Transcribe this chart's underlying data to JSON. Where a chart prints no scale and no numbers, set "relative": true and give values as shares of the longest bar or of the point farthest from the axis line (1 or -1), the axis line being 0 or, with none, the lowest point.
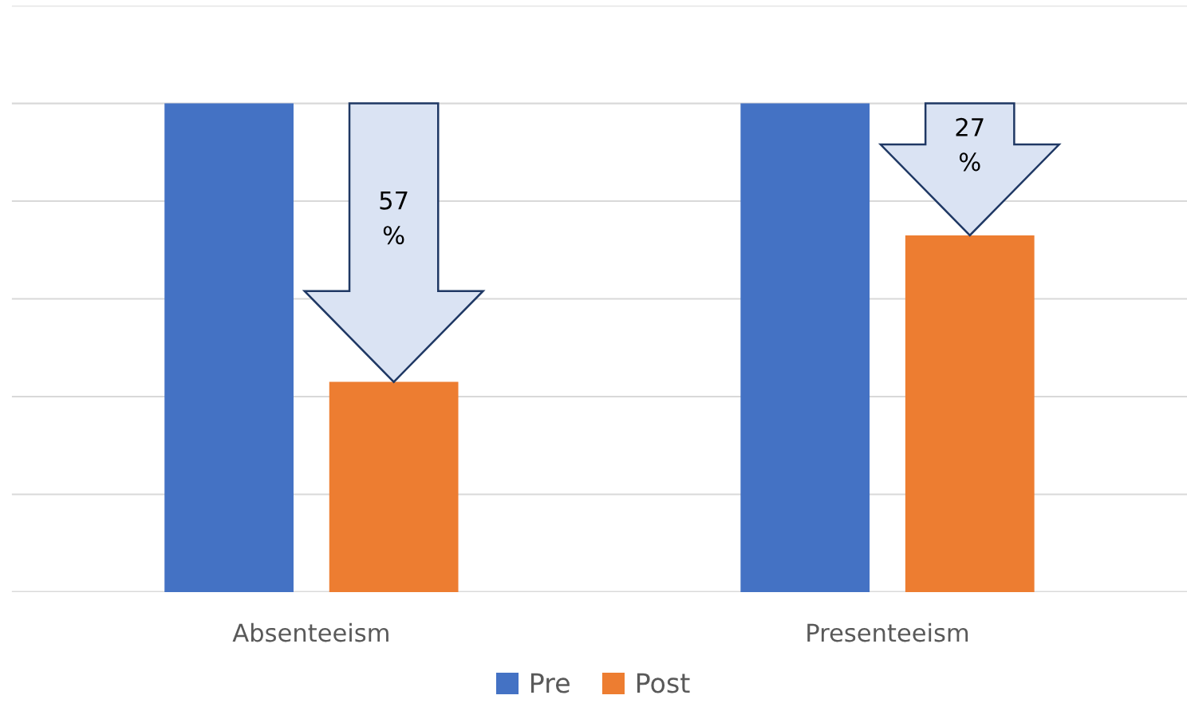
{
  "chart_data": {
    "type": "bar",
    "relative": true,
    "grid": "y",
    "legend": "bottom",
    "categories": [
      "Absenteeism",
      "Presenteeism"
    ],
    "series": [
      {
        "name": "Pre",
        "color": "#4472c4",
        "values": [
          1,
          1
        ]
      },
      {
        "name": "Post",
        "color": "#ed7d31",
        "values": [
          0.43,
          0.73
        ]
      }
    ],
    "annotations": [
      "57\n%",
      "27\n%"
    ]
  }
}
